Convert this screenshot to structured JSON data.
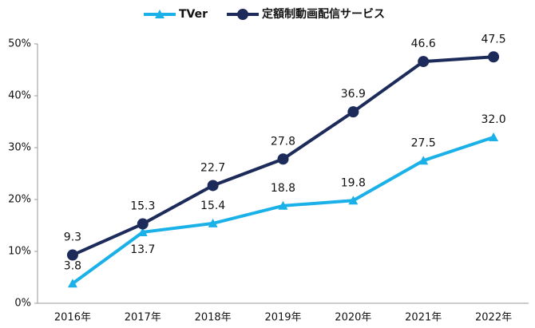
{
  "chart_data": {
    "type": "line",
    "categories": [
      "2016年",
      "2017年",
      "2018年",
      "2019年",
      "2020年",
      "2021年",
      "2022年"
    ],
    "series": [
      {
        "name": "TVer",
        "color": "#1ab0e8",
        "marker": "triangle",
        "values": [
          3.8,
          13.7,
          15.4,
          18.8,
          19.8,
          27.5,
          32.0
        ],
        "value_labels": [
          "3.8",
          "13.7",
          "15.4",
          "18.8",
          "19.8",
          "27.5",
          "32.0"
        ]
      },
      {
        "name": "定額制動画配信サービス",
        "color": "#1c2b5a",
        "marker": "circle",
        "values": [
          9.3,
          15.3,
          22.7,
          27.8,
          36.9,
          46.6,
          47.5
        ],
        "value_labels": [
          "9.3",
          "15.3",
          "22.7",
          "27.8",
          "36.9",
          "46.6",
          "47.5"
        ]
      }
    ],
    "ylim": [
      0,
      50
    ],
    "yticks": [
      {
        "value": 0,
        "label": "0%"
      },
      {
        "value": 10,
        "label": "10%"
      },
      {
        "value": 20,
        "label": "20%"
      },
      {
        "value": 30,
        "label": "30%"
      },
      {
        "value": 40,
        "label": "40%"
      },
      {
        "value": 50,
        "label": "50%"
      }
    ],
    "legend": "top"
  }
}
